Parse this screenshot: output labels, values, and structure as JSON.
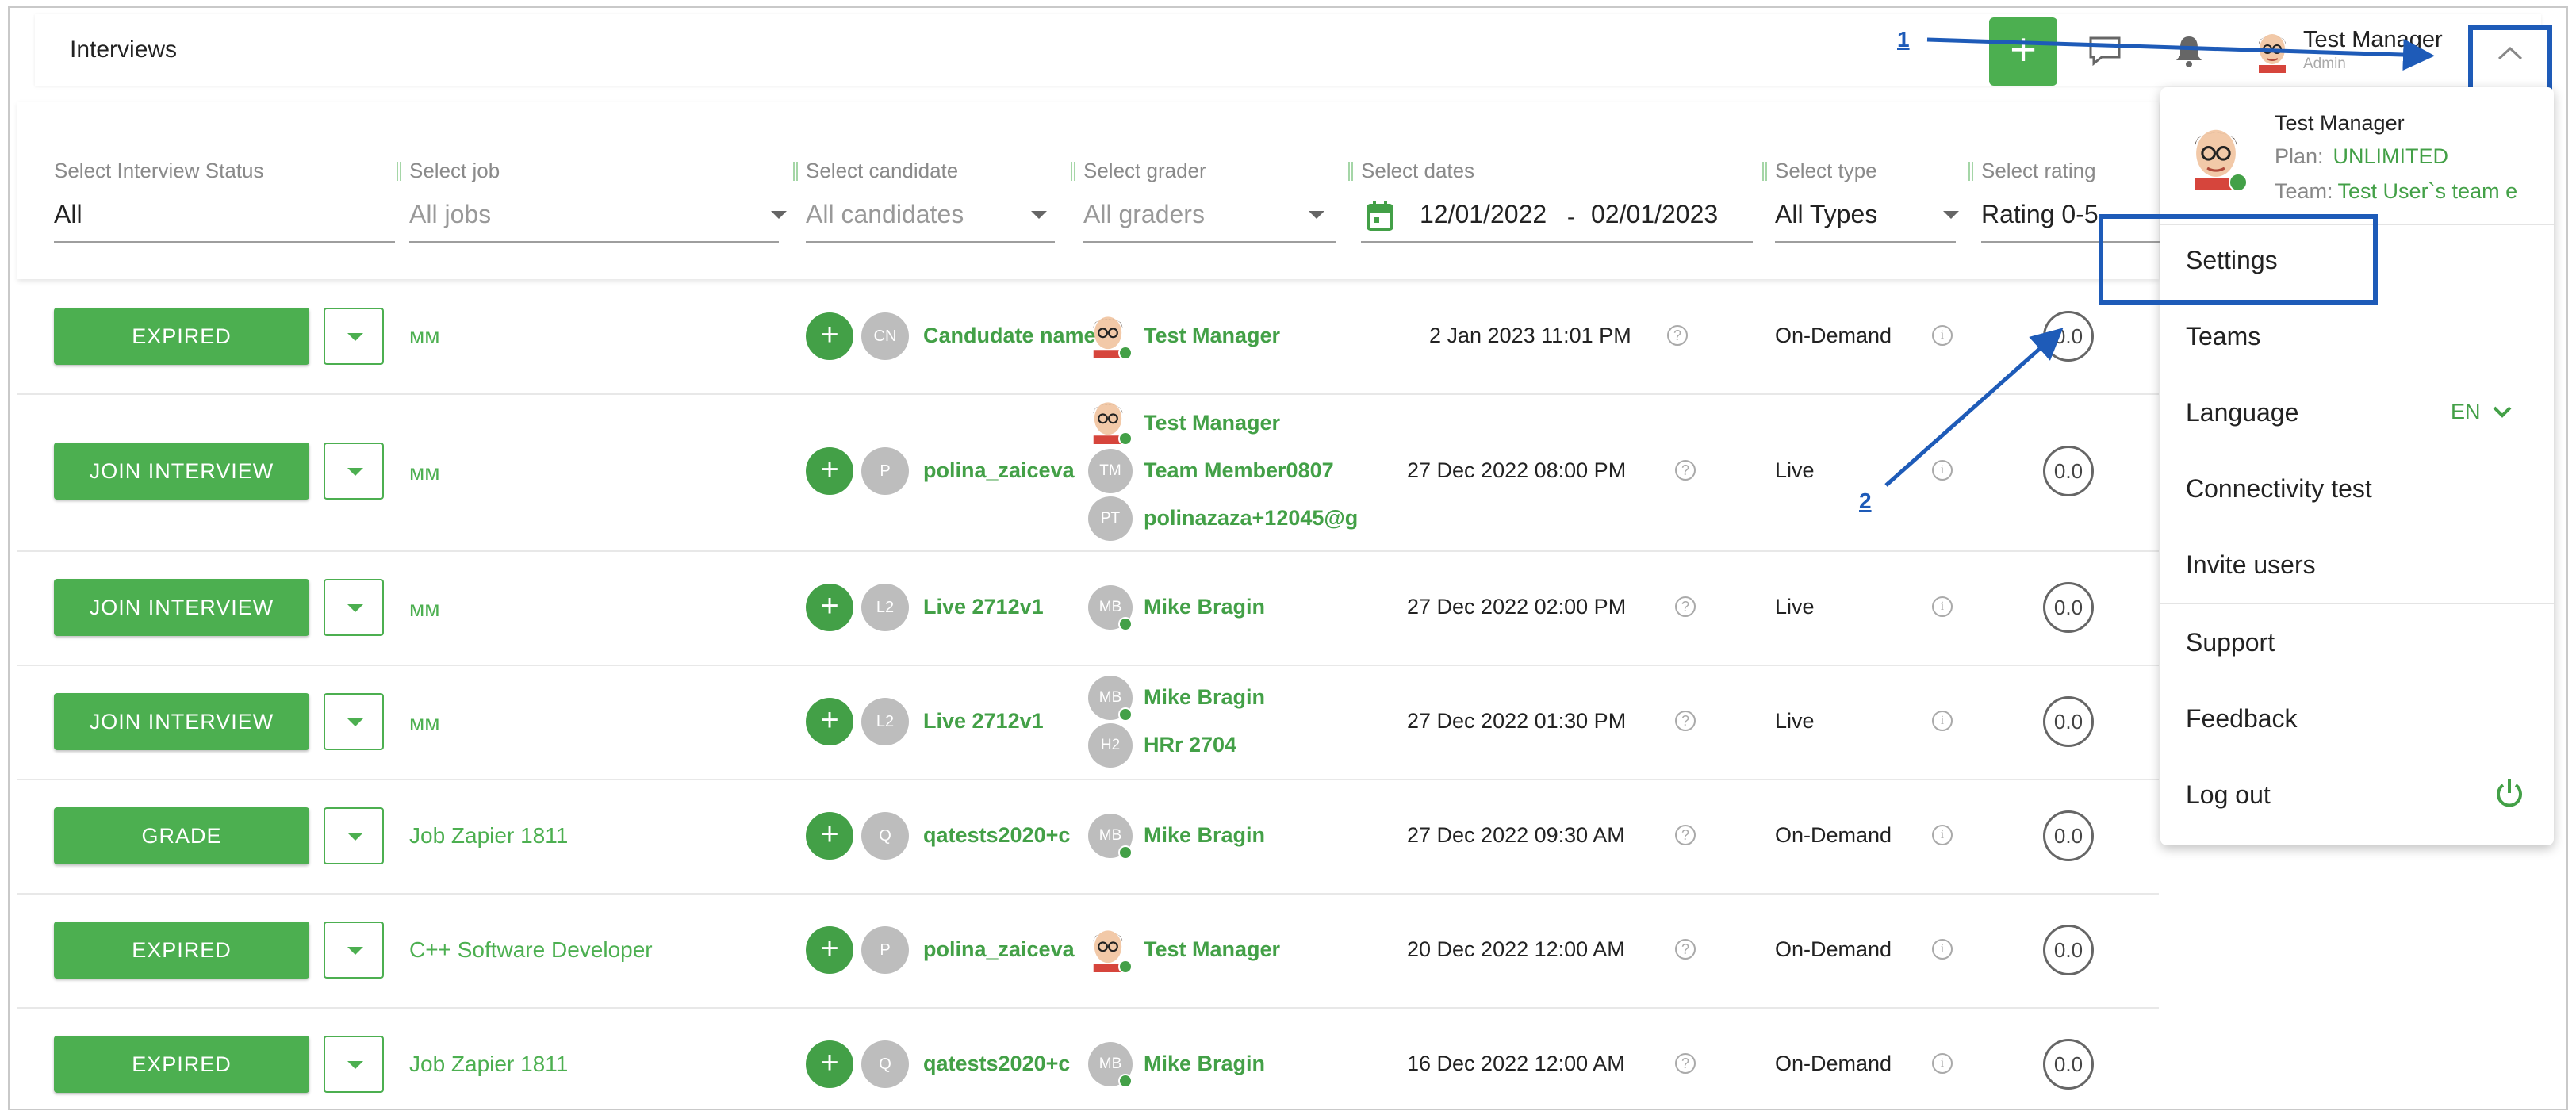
{
  "header": {
    "title": "Interviews",
    "add_label": "+",
    "user_name": "Test Manager",
    "user_role": "Admin"
  },
  "filters": [
    {
      "label": "Select Interview Status",
      "value": "All"
    },
    {
      "label": "Select job",
      "value": "All jobs"
    },
    {
      "label": "Select candidate",
      "value": "All candidates"
    },
    {
      "label": "Select grader",
      "value": "All graders"
    },
    {
      "label": "Select dates",
      "start": "12/01/2022",
      "separator": "-",
      "end": "02/01/2023"
    },
    {
      "label": "Select type",
      "value": "All Types"
    },
    {
      "label": "Select rating",
      "value": "Rating 0-5"
    }
  ],
  "rows": [
    {
      "action": "EXPIRED",
      "job": "мм",
      "plus": "+",
      "cand_initials": "CN",
      "candidate": "Candudate name",
      "graders": [
        {
          "initials": "",
          "name": "Test Manager"
        }
      ],
      "date": "2 Jan 2023 11:01 PM",
      "type": "On-Demand",
      "rating": "0.0"
    },
    {
      "action": "JOIN INTERVIEW",
      "job": "мм",
      "plus": "+",
      "cand_initials": "P",
      "candidate": "polina_zaiceva",
      "graders": [
        {
          "initials": "",
          "name": "Test Manager"
        },
        {
          "initials": "TM",
          "name": "Team Member0807"
        },
        {
          "initials": "PT",
          "name": "polinazaza+12045@g"
        }
      ],
      "date": "27 Dec 2022 08:00 PM",
      "type": "Live",
      "rating": "0.0"
    },
    {
      "action": "JOIN INTERVIEW",
      "job": "мм",
      "plus": "+",
      "cand_initials": "L2",
      "candidate": "Live 2712v1",
      "graders": [
        {
          "initials": "MB",
          "name": "Mike Bragin"
        }
      ],
      "date": "27 Dec 2022 02:00 PM",
      "type": "Live",
      "rating": "0.0"
    },
    {
      "action": "JOIN INTERVIEW",
      "job": "мм",
      "plus": "+",
      "cand_initials": "L2",
      "candidate": "Live 2712v1",
      "graders": [
        {
          "initials": "MB",
          "name": "Mike Bragin"
        },
        {
          "initials": "H2",
          "name": "HRr 2704"
        }
      ],
      "date": "27 Dec 2022 01:30 PM",
      "type": "Live",
      "rating": "0.0"
    },
    {
      "action": "GRADE",
      "job": "Job Zapier 1811",
      "plus": "+",
      "cand_initials": "Q",
      "candidate": "qatests2020+c",
      "graders": [
        {
          "initials": "MB",
          "name": "Mike Bragin"
        }
      ],
      "date": "27 Dec 2022 09:30 AM",
      "type": "On-Demand",
      "rating": "0.0"
    },
    {
      "action": "EXPIRED",
      "job": "C++ Software Developer",
      "plus": "+",
      "cand_initials": "P",
      "candidate": "polina_zaiceva",
      "graders": [
        {
          "initials": "",
          "name": "Test Manager"
        }
      ],
      "date": "20 Dec 2022 12:00 AM",
      "type": "On-Demand",
      "rating": "0.0"
    },
    {
      "action": "EXPIRED",
      "job": "Job Zapier 1811",
      "plus": "+",
      "cand_initials": "Q",
      "candidate": "qatests2020+c",
      "graders": [
        {
          "initials": "MB",
          "name": "Mike Bragin"
        }
      ],
      "date": "16 Dec 2022 12:00 AM",
      "type": "On-Demand",
      "rating": "0.0"
    }
  ],
  "menu": {
    "name": "Test Manager",
    "plan_label": "Plan:",
    "plan_value": "UNLIMITED",
    "team_label": "Team:",
    "team_value": "Test User`s team e",
    "items": [
      "Settings",
      "Teams",
      "Language",
      "Connectivity test",
      "Invite users",
      "Support",
      "Feedback",
      "Log out"
    ],
    "language_value": "EN"
  },
  "annotations": {
    "label_1": "1",
    "label_2": "2"
  },
  "colors": {
    "accent": "#4caf50",
    "annotation": "#1e5bb8"
  }
}
